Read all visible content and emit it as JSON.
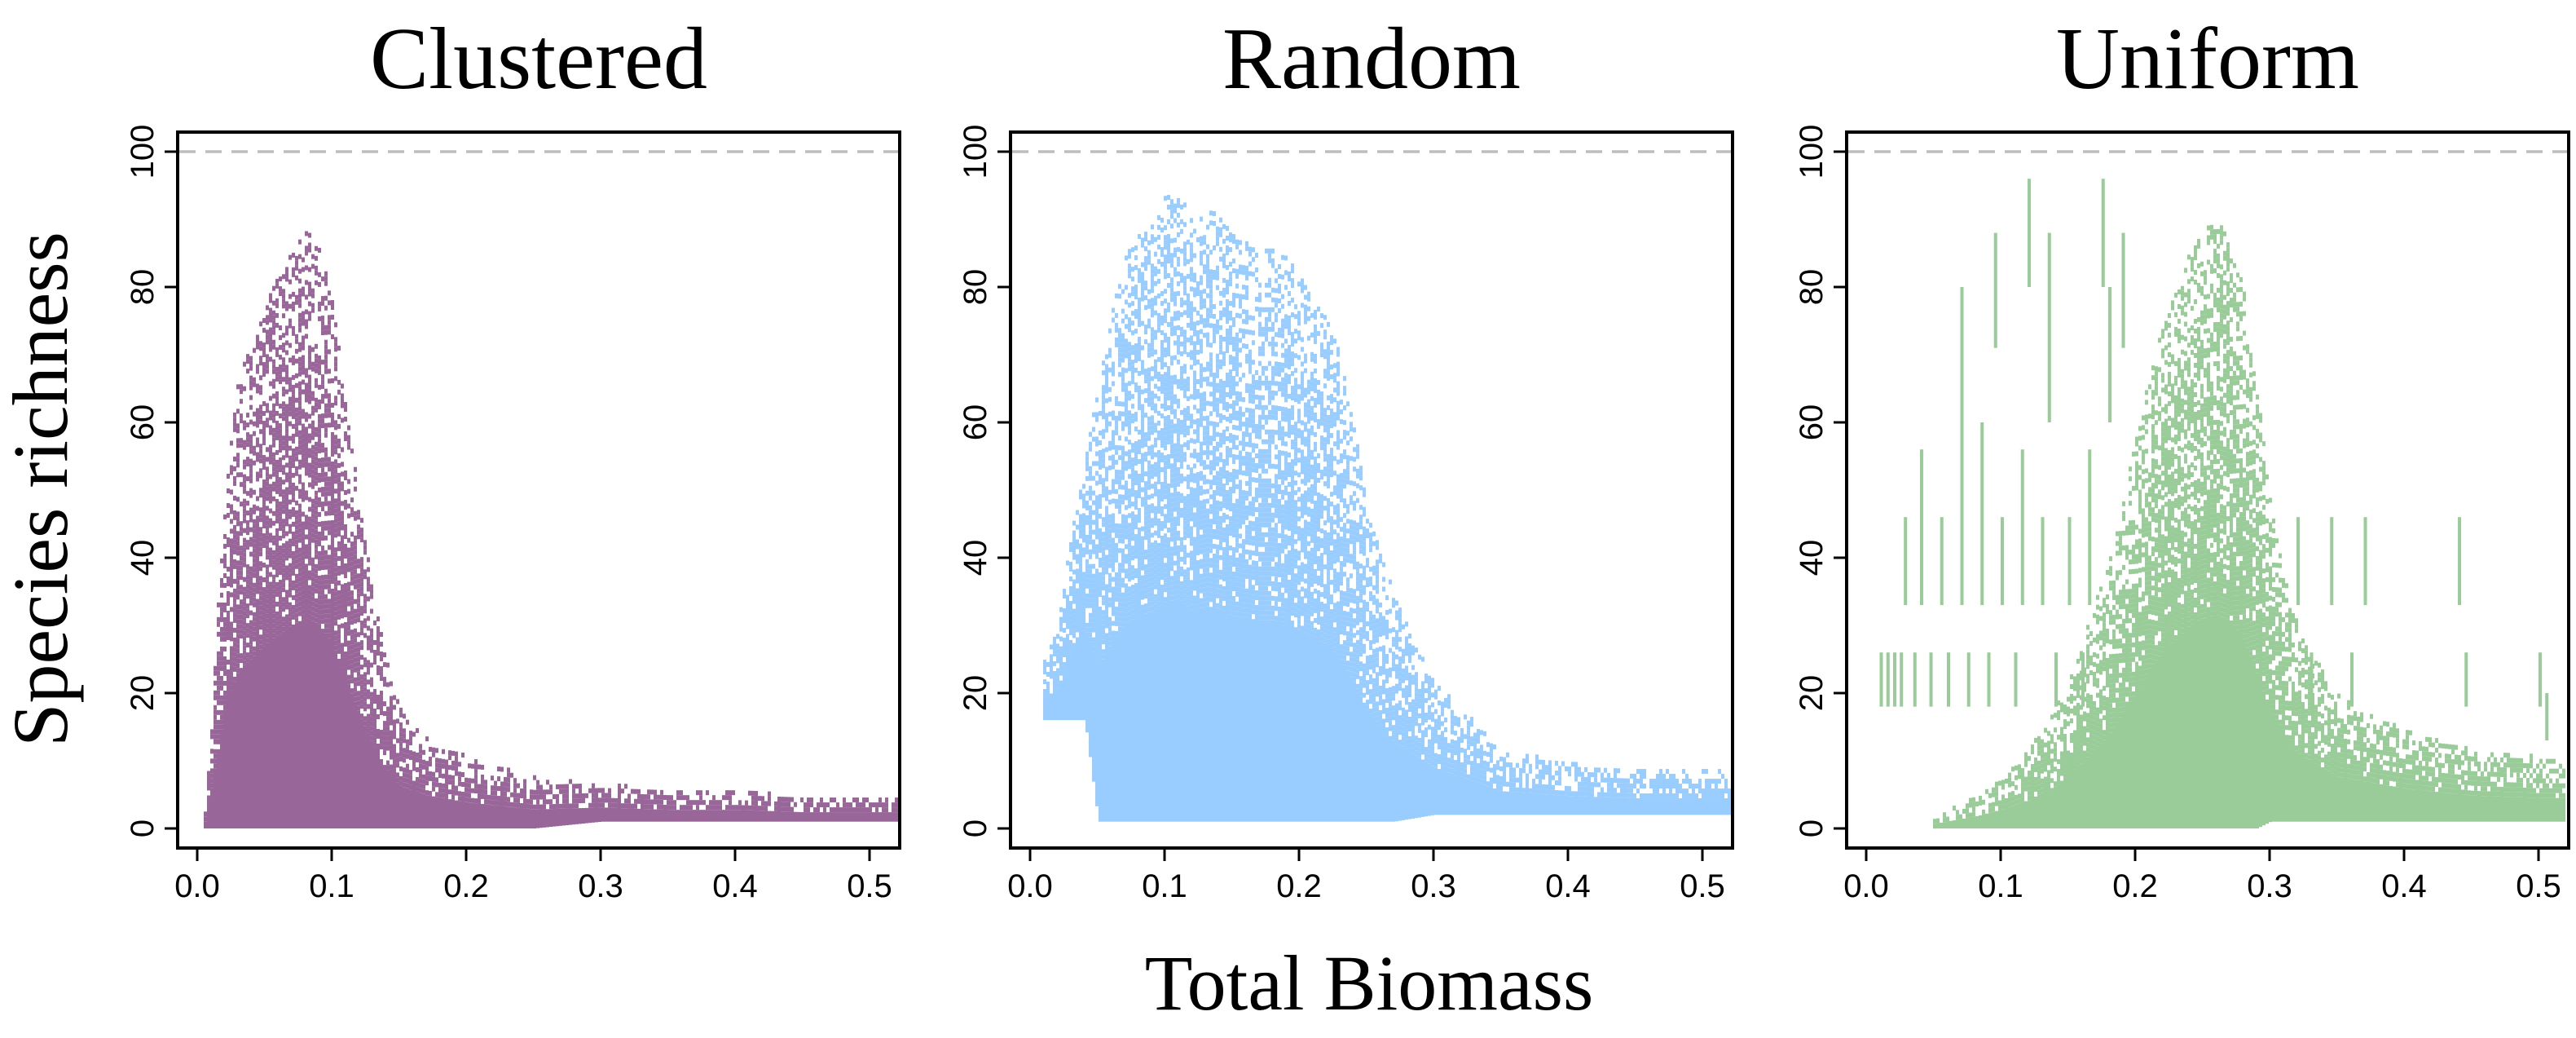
{
  "figure": {
    "ylabel": "Species richness",
    "xlabel": "Total Biomass"
  },
  "chart_data": [
    {
      "type": "heatmap",
      "title": "Clustered",
      "color": "#996699",
      "xlabel": "Total Biomass",
      "ylabel": "Species richness",
      "xlim": [
        0,
        0.52
      ],
      "ylim": [
        0,
        100
      ],
      "xticks": [
        0.0,
        0.1,
        0.2,
        0.3,
        0.4,
        0.5
      ],
      "xtick_labels": [
        "0.0",
        "0.1",
        "0.2",
        "0.3",
        "0.4",
        "0.5"
      ],
      "yticks": [
        0,
        20,
        40,
        60,
        80,
        100
      ],
      "ytick_labels": [
        "0",
        "20",
        "40",
        "60",
        "80",
        "100"
      ],
      "reference_line_y": 100,
      "envelope": {
        "x": [
          0.005,
          0.01,
          0.02,
          0.03,
          0.04,
          0.05,
          0.06,
          0.07,
          0.08,
          0.09,
          0.1,
          0.11,
          0.12,
          0.13,
          0.14,
          0.15,
          0.17,
          0.2,
          0.25,
          0.3,
          0.35,
          0.4,
          0.45,
          0.5,
          0.52
        ],
        "max_richness": [
          3,
          18,
          52,
          67,
          72,
          78,
          82,
          86,
          89,
          86,
          78,
          63,
          48,
          35,
          25,
          18,
          14,
          11,
          8,
          7,
          6,
          6,
          5,
          5,
          5
        ],
        "min_richness": [
          0,
          0,
          0,
          0,
          0,
          0,
          0,
          0,
          0,
          0,
          0,
          0,
          0,
          0,
          0,
          0,
          0,
          0,
          0,
          1,
          1,
          1,
          1,
          1,
          1
        ]
      }
    },
    {
      "type": "heatmap",
      "title": "Random",
      "color": "#99ccff",
      "xlabel": "Total Biomass",
      "ylabel": "Species richness",
      "xlim": [
        0,
        0.52
      ],
      "ylim": [
        0,
        100
      ],
      "xticks": [
        0.0,
        0.1,
        0.2,
        0.3,
        0.4,
        0.5
      ],
      "xtick_labels": [
        "0.0",
        "0.1",
        "0.2",
        "0.3",
        "0.4",
        "0.5"
      ],
      "yticks": [
        0,
        20,
        40,
        60,
        80,
        100
      ],
      "ytick_labels": [
        "0",
        "20",
        "40",
        "60",
        "80",
        "100"
      ],
      "reference_line_y": 100,
      "envelope": {
        "x": [
          0.01,
          0.02,
          0.03,
          0.04,
          0.05,
          0.06,
          0.07,
          0.08,
          0.09,
          0.1,
          0.11,
          0.12,
          0.13,
          0.14,
          0.15,
          0.16,
          0.17,
          0.18,
          0.19,
          0.2,
          0.21,
          0.22,
          0.23,
          0.24,
          0.25,
          0.27,
          0.3,
          0.35,
          0.4,
          0.45,
          0.5,
          0.52
        ],
        "max_richness": [
          25,
          30,
          45,
          55,
          66,
          77,
          85,
          88,
          90,
          94,
          95,
          90,
          92,
          91,
          88,
          87,
          86,
          86,
          85,
          82,
          79,
          76,
          70,
          60,
          48,
          35,
          22,
          12,
          10,
          9,
          9,
          9
        ],
        "min_richness": [
          16,
          16,
          16,
          16,
          1,
          1,
          1,
          1,
          1,
          1,
          1,
          1,
          1,
          1,
          1,
          1,
          1,
          1,
          1,
          1,
          1,
          1,
          1,
          1,
          1,
          1,
          2,
          2,
          2,
          2,
          2,
          2
        ]
      }
    },
    {
      "type": "heatmap",
      "title": "Uniform",
      "color": "#99cc99",
      "xlabel": "Total Biomass",
      "ylabel": "Species richness",
      "xlim": [
        0,
        0.52
      ],
      "ylim": [
        0,
        100
      ],
      "xticks": [
        0.0,
        0.1,
        0.2,
        0.3,
        0.4,
        0.5
      ],
      "xtick_labels": [
        "0.0",
        "0.1",
        "0.2",
        "0.3",
        "0.4",
        "0.5"
      ],
      "yticks": [
        0,
        20,
        40,
        60,
        80,
        100
      ],
      "ytick_labels": [
        "0",
        "20",
        "40",
        "60",
        "80",
        "100"
      ],
      "reference_line_y": 100,
      "envelope": {
        "x": [
          0.05,
          0.08,
          0.1,
          0.12,
          0.14,
          0.16,
          0.18,
          0.2,
          0.21,
          0.22,
          0.23,
          0.24,
          0.25,
          0.26,
          0.27,
          0.28,
          0.29,
          0.3,
          0.32,
          0.35,
          0.4,
          0.45,
          0.5,
          0.52
        ],
        "max_richness": [
          2,
          5,
          8,
          12,
          18,
          28,
          40,
          58,
          68,
          75,
          80,
          86,
          89,
          90,
          88,
          80,
          65,
          48,
          30,
          20,
          15,
          12,
          11,
          11
        ],
        "min_richness": [
          0,
          0,
          0,
          0,
          0,
          0,
          0,
          0,
          0,
          0,
          0,
          0,
          0,
          0,
          0,
          0,
          0,
          1,
          1,
          1,
          1,
          1,
          1,
          1
        ]
      },
      "vertical_segments": [
        {
          "x": 0.01,
          "y": [
            18,
            26
          ]
        },
        {
          "x": 0.015,
          "y": [
            18,
            26
          ]
        },
        {
          "x": 0.02,
          "y": [
            18,
            26
          ]
        },
        {
          "x": 0.025,
          "y": [
            18,
            26
          ]
        },
        {
          "x": 0.028,
          "y": [
            33,
            46
          ]
        },
        {
          "x": 0.035,
          "y": [
            18,
            26
          ]
        },
        {
          "x": 0.04,
          "y": [
            33,
            56
          ]
        },
        {
          "x": 0.047,
          "y": [
            18,
            26
          ]
        },
        {
          "x": 0.055,
          "y": [
            33,
            46
          ]
        },
        {
          "x": 0.06,
          "y": [
            18,
            26
          ]
        },
        {
          "x": 0.07,
          "y": [
            33,
            80
          ]
        },
        {
          "x": 0.075,
          "y": [
            18,
            26
          ]
        },
        {
          "x": 0.085,
          "y": [
            33,
            60
          ]
        },
        {
          "x": 0.09,
          "y": [
            18,
            26
          ]
        },
        {
          "x": 0.095,
          "y": [
            71,
            88
          ]
        },
        {
          "x": 0.1,
          "y": [
            33,
            46
          ]
        },
        {
          "x": 0.11,
          "y": [
            18,
            26
          ]
        },
        {
          "x": 0.115,
          "y": [
            33,
            56
          ]
        },
        {
          "x": 0.12,
          "y": [
            80,
            96
          ]
        },
        {
          "x": 0.13,
          "y": [
            33,
            46
          ]
        },
        {
          "x": 0.135,
          "y": [
            60,
            88
          ]
        },
        {
          "x": 0.14,
          "y": [
            18,
            26
          ]
        },
        {
          "x": 0.15,
          "y": [
            33,
            46
          ]
        },
        {
          "x": 0.16,
          "y": [
            18,
            26
          ]
        },
        {
          "x": 0.165,
          "y": [
            33,
            56
          ]
        },
        {
          "x": 0.175,
          "y": [
            80,
            96
          ]
        },
        {
          "x": 0.18,
          "y": [
            60,
            80
          ]
        },
        {
          "x": 0.19,
          "y": [
            71,
            88
          ]
        },
        {
          "x": 0.32,
          "y": [
            33,
            46
          ]
        },
        {
          "x": 0.33,
          "y": [
            18,
            26
          ]
        },
        {
          "x": 0.345,
          "y": [
            33,
            46
          ]
        },
        {
          "x": 0.36,
          "y": [
            18,
            26
          ]
        },
        {
          "x": 0.37,
          "y": [
            33,
            46
          ]
        },
        {
          "x": 0.44,
          "y": [
            33,
            46
          ]
        },
        {
          "x": 0.445,
          "y": [
            18,
            26
          ]
        },
        {
          "x": 0.5,
          "y": [
            18,
            26
          ]
        },
        {
          "x": 0.505,
          "y": [
            13,
            20
          ]
        }
      ]
    }
  ]
}
